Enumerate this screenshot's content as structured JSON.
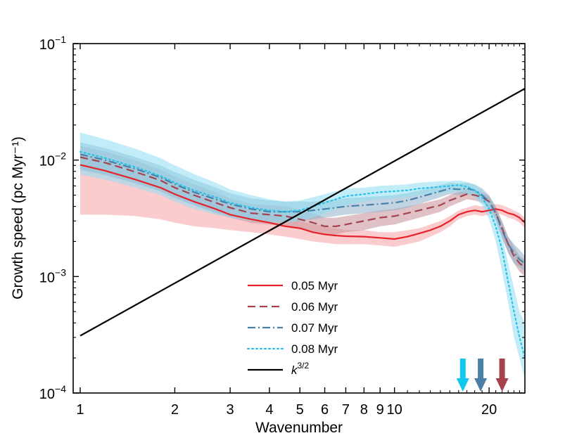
{
  "chart_data": {
    "type": "line",
    "xlabel": "Wavenumber",
    "ylabel": "Growth speed (pc Myr⁻¹)",
    "x_scale": "log",
    "y_scale": "log",
    "xlim": [
      0.95,
      26
    ],
    "ylim": [
      0.0001,
      0.1
    ],
    "grid": false,
    "legend_position": "bottom-center",
    "x_ticks": [
      {
        "value": 1,
        "label": "1"
      },
      {
        "value": 2,
        "label": "2"
      },
      {
        "value": 3,
        "label": "3"
      },
      {
        "value": 4,
        "label": "4"
      },
      {
        "value": 5,
        "label": "5"
      },
      {
        "value": 6,
        "label": "6"
      },
      {
        "value": 7,
        "label": "7"
      },
      {
        "value": 8,
        "label": "8"
      },
      {
        "value": 9,
        "label": "9"
      },
      {
        "value": 10,
        "label": "10"
      },
      {
        "value": 20,
        "label": "20"
      }
    ],
    "y_ticks": [
      {
        "value": 0.0001,
        "base": "10",
        "exp": "−4"
      },
      {
        "value": 0.001,
        "base": "10",
        "exp": "−3"
      },
      {
        "value": 0.01,
        "base": "10",
        "exp": "−2"
      },
      {
        "value": 0.1,
        "base": "10",
        "exp": "−1"
      }
    ],
    "series": [
      {
        "name": "0.05 Myr",
        "color": "#e8222b",
        "band_color": "#f7a3a5",
        "style": "solid",
        "x": [
          1,
          1.2,
          1.5,
          1.8,
          2,
          2.3,
          2.7,
          3,
          3.5,
          4,
          4.5,
          5,
          5.5,
          6,
          6.5,
          7,
          8,
          9,
          10,
          11,
          12,
          13,
          14,
          15,
          16,
          17,
          18,
          19,
          20,
          21,
          22,
          23,
          24,
          25,
          26
        ],
        "values": [
          0.0091,
          0.0081,
          0.0068,
          0.0058,
          0.0051,
          0.0044,
          0.0038,
          0.0034,
          0.0031,
          0.0029,
          0.0027,
          0.0026,
          0.0024,
          0.0023,
          0.00225,
          0.00222,
          0.0022,
          0.00215,
          0.0021,
          0.0022,
          0.00235,
          0.0025,
          0.0027,
          0.003,
          0.0034,
          0.0036,
          0.0037,
          0.0036,
          0.0037,
          0.0038,
          0.0037,
          0.0035,
          0.0034,
          0.0032,
          0.0029
        ],
        "upper": [
          0.0115,
          0.0102,
          0.0085,
          0.0072,
          0.0064,
          0.0055,
          0.0047,
          0.0042,
          0.0037,
          0.0034,
          0.0032,
          0.003,
          0.0028,
          0.0027,
          0.0026,
          0.0025,
          0.0025,
          0.0024,
          0.0024,
          0.0025,
          0.0026,
          0.0028,
          0.003,
          0.0033,
          0.0037,
          0.0039,
          0.0041,
          0.004,
          0.0041,
          0.0042,
          0.0041,
          0.0039,
          0.0037,
          0.0035,
          0.0032
        ],
        "lower": [
          0.0034,
          0.0034,
          0.0033,
          0.0031,
          0.0029,
          0.0027,
          0.0026,
          0.0025,
          0.0024,
          0.0023,
          0.0022,
          0.0021,
          0.002,
          0.00195,
          0.0019,
          0.0019,
          0.0019,
          0.00185,
          0.0018,
          0.0019,
          0.002,
          0.0022,
          0.0024,
          0.0027,
          0.0031,
          0.0033,
          0.0034,
          0.0033,
          0.0034,
          0.0035,
          0.0034,
          0.0032,
          0.0031,
          0.0029,
          0.0026
        ]
      },
      {
        "name": "0.06 Myr",
        "color": "#a5424e",
        "band_color": "#c68f98",
        "style": "dashed",
        "x": [
          1,
          1.2,
          1.5,
          1.8,
          2,
          2.3,
          2.7,
          3,
          3.5,
          4,
          4.5,
          5,
          5.5,
          6,
          6.5,
          7,
          8,
          9,
          10,
          11,
          12,
          13,
          14,
          15,
          16,
          17,
          18,
          19,
          20,
          21,
          22,
          23,
          24,
          25,
          26
        ],
        "values": [
          0.0106,
          0.0095,
          0.0079,
          0.0067,
          0.0058,
          0.005,
          0.0043,
          0.0039,
          0.0035,
          0.0034,
          0.0033,
          0.0031,
          0.0029,
          0.0027,
          0.0027,
          0.0028,
          0.003,
          0.0032,
          0.0033,
          0.0035,
          0.0037,
          0.0039,
          0.0041,
          0.0045,
          0.0048,
          0.0051,
          0.005,
          0.0048,
          0.0044,
          0.0035,
          0.0026,
          0.0019,
          0.0015,
          0.0013,
          0.0012
        ],
        "upper": [
          0.0132,
          0.0119,
          0.0099,
          0.0083,
          0.0072,
          0.0062,
          0.0053,
          0.0047,
          0.0042,
          0.0041,
          0.004,
          0.0037,
          0.0035,
          0.0032,
          0.0032,
          0.0033,
          0.0035,
          0.0037,
          0.0038,
          0.004,
          0.0042,
          0.0044,
          0.0046,
          0.005,
          0.0053,
          0.0056,
          0.0055,
          0.0053,
          0.0049,
          0.0039,
          0.003,
          0.0022,
          0.0018,
          0.0015,
          0.0014
        ],
        "lower": [
          0.0084,
          0.0075,
          0.0063,
          0.0054,
          0.0047,
          0.0041,
          0.0035,
          0.0032,
          0.0029,
          0.0028,
          0.0027,
          0.0026,
          0.0024,
          0.0023,
          0.0023,
          0.0024,
          0.0025,
          0.0027,
          0.0028,
          0.003,
          0.0032,
          0.0034,
          0.0036,
          0.004,
          0.0043,
          0.0046,
          0.0045,
          0.0043,
          0.0039,
          0.0031,
          0.0022,
          0.0016,
          0.0013,
          0.0011,
          0.001
        ]
      },
      {
        "name": "0.07 Myr",
        "color": "#4a7fa6",
        "band_color": "#8fb0c9",
        "style": "dashdot",
        "x": [
          1,
          1.2,
          1.5,
          1.8,
          2,
          2.3,
          2.7,
          3,
          3.5,
          4,
          4.5,
          5,
          5.5,
          6,
          6.5,
          7,
          8,
          9,
          10,
          11,
          12,
          13,
          14,
          15,
          16,
          17,
          18,
          19,
          20,
          21,
          22,
          23,
          24,
          25,
          26
        ],
        "values": [
          0.0112,
          0.01,
          0.0084,
          0.0071,
          0.0062,
          0.0053,
          0.0046,
          0.0042,
          0.0038,
          0.0036,
          0.0036,
          0.0036,
          0.0037,
          0.0038,
          0.0039,
          0.004,
          0.0041,
          0.0042,
          0.0043,
          0.0045,
          0.0048,
          0.0051,
          0.0054,
          0.0057,
          0.0056,
          0.0057,
          0.0055,
          0.005,
          0.0044,
          0.0035,
          0.0025,
          0.0019,
          0.0016,
          0.0014,
          0.0013
        ],
        "upper": [
          0.0142,
          0.0127,
          0.0106,
          0.009,
          0.0079,
          0.0068,
          0.0058,
          0.0052,
          0.0047,
          0.0045,
          0.0044,
          0.0044,
          0.0044,
          0.0045,
          0.0046,
          0.0047,
          0.0048,
          0.0049,
          0.005,
          0.0052,
          0.0055,
          0.0058,
          0.0061,
          0.0064,
          0.0063,
          0.0064,
          0.0062,
          0.0057,
          0.005,
          0.004,
          0.0029,
          0.0022,
          0.0019,
          0.0017,
          0.0015
        ],
        "lower": [
          0.0082,
          0.0074,
          0.0063,
          0.0054,
          0.0048,
          0.0041,
          0.0036,
          0.0033,
          0.0031,
          0.003,
          0.003,
          0.003,
          0.0031,
          0.0032,
          0.0033,
          0.0034,
          0.0035,
          0.0036,
          0.0037,
          0.0039,
          0.0042,
          0.0045,
          0.0048,
          0.0051,
          0.005,
          0.0051,
          0.0049,
          0.0044,
          0.0038,
          0.003,
          0.0021,
          0.0016,
          0.0013,
          0.0012,
          0.0011
        ]
      },
      {
        "name": "0.08 Myr",
        "color": "#27c2e8",
        "band_color": "#8fdff2",
        "style": "dotted",
        "x": [
          1,
          1.2,
          1.5,
          1.8,
          2,
          2.3,
          2.7,
          3,
          3.5,
          4,
          4.5,
          5,
          5.5,
          6,
          6.5,
          7,
          8,
          9,
          10,
          11,
          12,
          13,
          14,
          15,
          16,
          17,
          18,
          19,
          20,
          21,
          22,
          23,
          24,
          25,
          26
        ],
        "values": [
          0.0118,
          0.0104,
          0.0087,
          0.0073,
          0.0064,
          0.0055,
          0.0048,
          0.0043,
          0.0039,
          0.0037,
          0.0036,
          0.0037,
          0.004,
          0.0043,
          0.0046,
          0.0049,
          0.0051,
          0.0053,
          0.0054,
          0.0055,
          0.0057,
          0.0058,
          0.0059,
          0.006,
          0.0061,
          0.0059,
          0.0055,
          0.0048,
          0.0038,
          0.0027,
          0.0017,
          0.0009,
          0.0005,
          0.0003,
          0.0002
        ],
        "upper": [
          0.0172,
          0.0151,
          0.0125,
          0.0104,
          0.009,
          0.0076,
          0.0064,
          0.0056,
          0.005,
          0.0046,
          0.0044,
          0.0045,
          0.0048,
          0.0051,
          0.0054,
          0.0057,
          0.0058,
          0.006,
          0.0061,
          0.0062,
          0.0064,
          0.0065,
          0.0066,
          0.0066,
          0.0067,
          0.0065,
          0.0061,
          0.0054,
          0.0044,
          0.0033,
          0.0022,
          0.0013,
          0.0008,
          0.0005,
          0.0004
        ],
        "lower": [
          0.0075,
          0.0068,
          0.0058,
          0.005,
          0.0044,
          0.0038,
          0.0034,
          0.0032,
          0.003,
          0.0029,
          0.0029,
          0.003,
          0.0032,
          0.0035,
          0.0038,
          0.0041,
          0.0044,
          0.0046,
          0.0047,
          0.0048,
          0.005,
          0.0051,
          0.0052,
          0.0053,
          0.0054,
          0.0052,
          0.0048,
          0.0041,
          0.0031,
          0.002,
          0.0011,
          0.0006,
          0.0003,
          0.0002,
          0.00013
        ]
      },
      {
        "name": "k^{3/2}",
        "label_base": "k",
        "label_exp": "3/2",
        "color": "#000000",
        "style": "solid",
        "x": [
          1,
          26
        ],
        "values": [
          0.00031,
          0.0411
        ]
      }
    ],
    "annotations": [
      {
        "type": "arrow-down",
        "x": 16.5,
        "color": "#14c7ef"
      },
      {
        "type": "arrow-down",
        "x": 18.8,
        "color": "#4a7fa6"
      },
      {
        "type": "arrow-down",
        "x": 22.0,
        "color": "#a5424e"
      }
    ]
  }
}
